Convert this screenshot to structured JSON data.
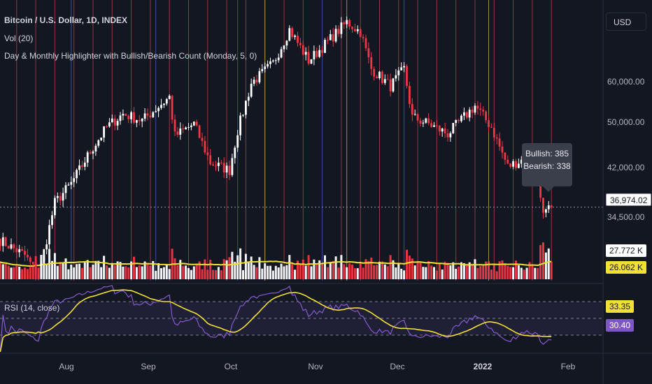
{
  "title": "Bitcoin / U.S. Dollar, 1D, INDEX",
  "indicators": {
    "volume": "Vol (20)",
    "highlighter": "Day & Monthly Highlighter with Bullish/Bearish Count (Monday, 5, 0)",
    "rsi": "RSI (14, close)"
  },
  "currency_button": "USD",
  "tooltip": {
    "bullish": "Bullish: 385",
    "bearish": "Bearish: 338"
  },
  "price_axis": [
    "60,000.00",
    "50,000.00",
    "42,000.00",
    "34,500.00"
  ],
  "current_price": "36,974.02",
  "volume_tags": {
    "volume": "27.772 K",
    "ma": "26.062 K"
  },
  "rsi_tags": {
    "ma": "33.35",
    "rsi": "30.40"
  },
  "time_axis": [
    {
      "label": "Aug",
      "bold": false
    },
    {
      "label": "Sep",
      "bold": false
    },
    {
      "label": "Oct",
      "bold": false
    },
    {
      "label": "Nov",
      "bold": false
    },
    {
      "label": "Dec",
      "bold": false
    },
    {
      "label": "2022",
      "bold": true
    },
    {
      "label": "Feb",
      "bold": false
    }
  ],
  "colors": {
    "bull": "#ffffff",
    "bear": "#f23645",
    "wick": "#b2b5be",
    "volume_ma": "#f2e034",
    "rsi": "#7e57c2",
    "rsi_ma": "#f2e034",
    "monday_line": "#b23a44",
    "month_line": "#3d5bb0",
    "year_line": "#b8a33a"
  },
  "chart_data": [
    {
      "type": "candlestick",
      "title": "Bitcoin / U.S. Dollar, 1D, INDEX",
      "y_axis": "log price (USD)",
      "ylim": [
        29500,
        68000
      ],
      "x_range": [
        "2021-07-05",
        "2022-01-24"
      ],
      "current_price": 36974.02,
      "anchors": [
        [
          "2021-07-05",
          33500
        ],
        [
          "2021-07-15",
          31800
        ],
        [
          "2021-07-20",
          29800
        ],
        [
          "2021-07-26",
          37500
        ],
        [
          "2021-08-01",
          39800
        ],
        [
          "2021-08-08",
          44000
        ],
        [
          "2021-08-14",
          47500
        ],
        [
          "2021-08-20",
          49500
        ],
        [
          "2021-08-27",
          48500
        ],
        [
          "2021-09-06",
          52200
        ],
        [
          "2021-09-08",
          46200
        ],
        [
          "2021-09-15",
          48000
        ],
        [
          "2021-09-21",
          42500
        ],
        [
          "2021-09-28",
          41500
        ],
        [
          "2021-10-01",
          47000
        ],
        [
          "2021-10-06",
          54500
        ],
        [
          "2021-10-14",
          58000
        ],
        [
          "2021-10-20",
          64500
        ],
        [
          "2021-10-27",
          58500
        ],
        [
          "2021-11-01",
          61000
        ],
        [
          "2021-11-10",
          66000
        ],
        [
          "2021-11-15",
          64000
        ],
        [
          "2021-11-19",
          57000
        ],
        [
          "2021-11-26",
          54000
        ],
        [
          "2021-12-01",
          57000
        ],
        [
          "2021-12-04",
          49000
        ],
        [
          "2021-12-10",
          48000
        ],
        [
          "2021-12-17",
          46500
        ],
        [
          "2021-12-27",
          50800
        ],
        [
          "2022-01-02",
          47500
        ],
        [
          "2022-01-08",
          42000
        ],
        [
          "2022-01-14",
          43000
        ],
        [
          "2022-01-19",
          41500
        ],
        [
          "2022-01-21",
          36000
        ],
        [
          "2022-01-24",
          36974
        ]
      ],
      "legend": {
        "bullish": 385,
        "bearish": 338
      }
    },
    {
      "type": "bar",
      "title": "Vol (20)",
      "unit": "K",
      "latest_volume": 27.772,
      "ma_length": 20,
      "latest_ma": 26.062
    },
    {
      "type": "line",
      "title": "RSI (14, close)",
      "ylim": [
        10,
        90
      ],
      "levels": [
        70,
        50,
        30
      ],
      "latest_rsi": 30.4,
      "latest_ma": 33.35
    }
  ]
}
